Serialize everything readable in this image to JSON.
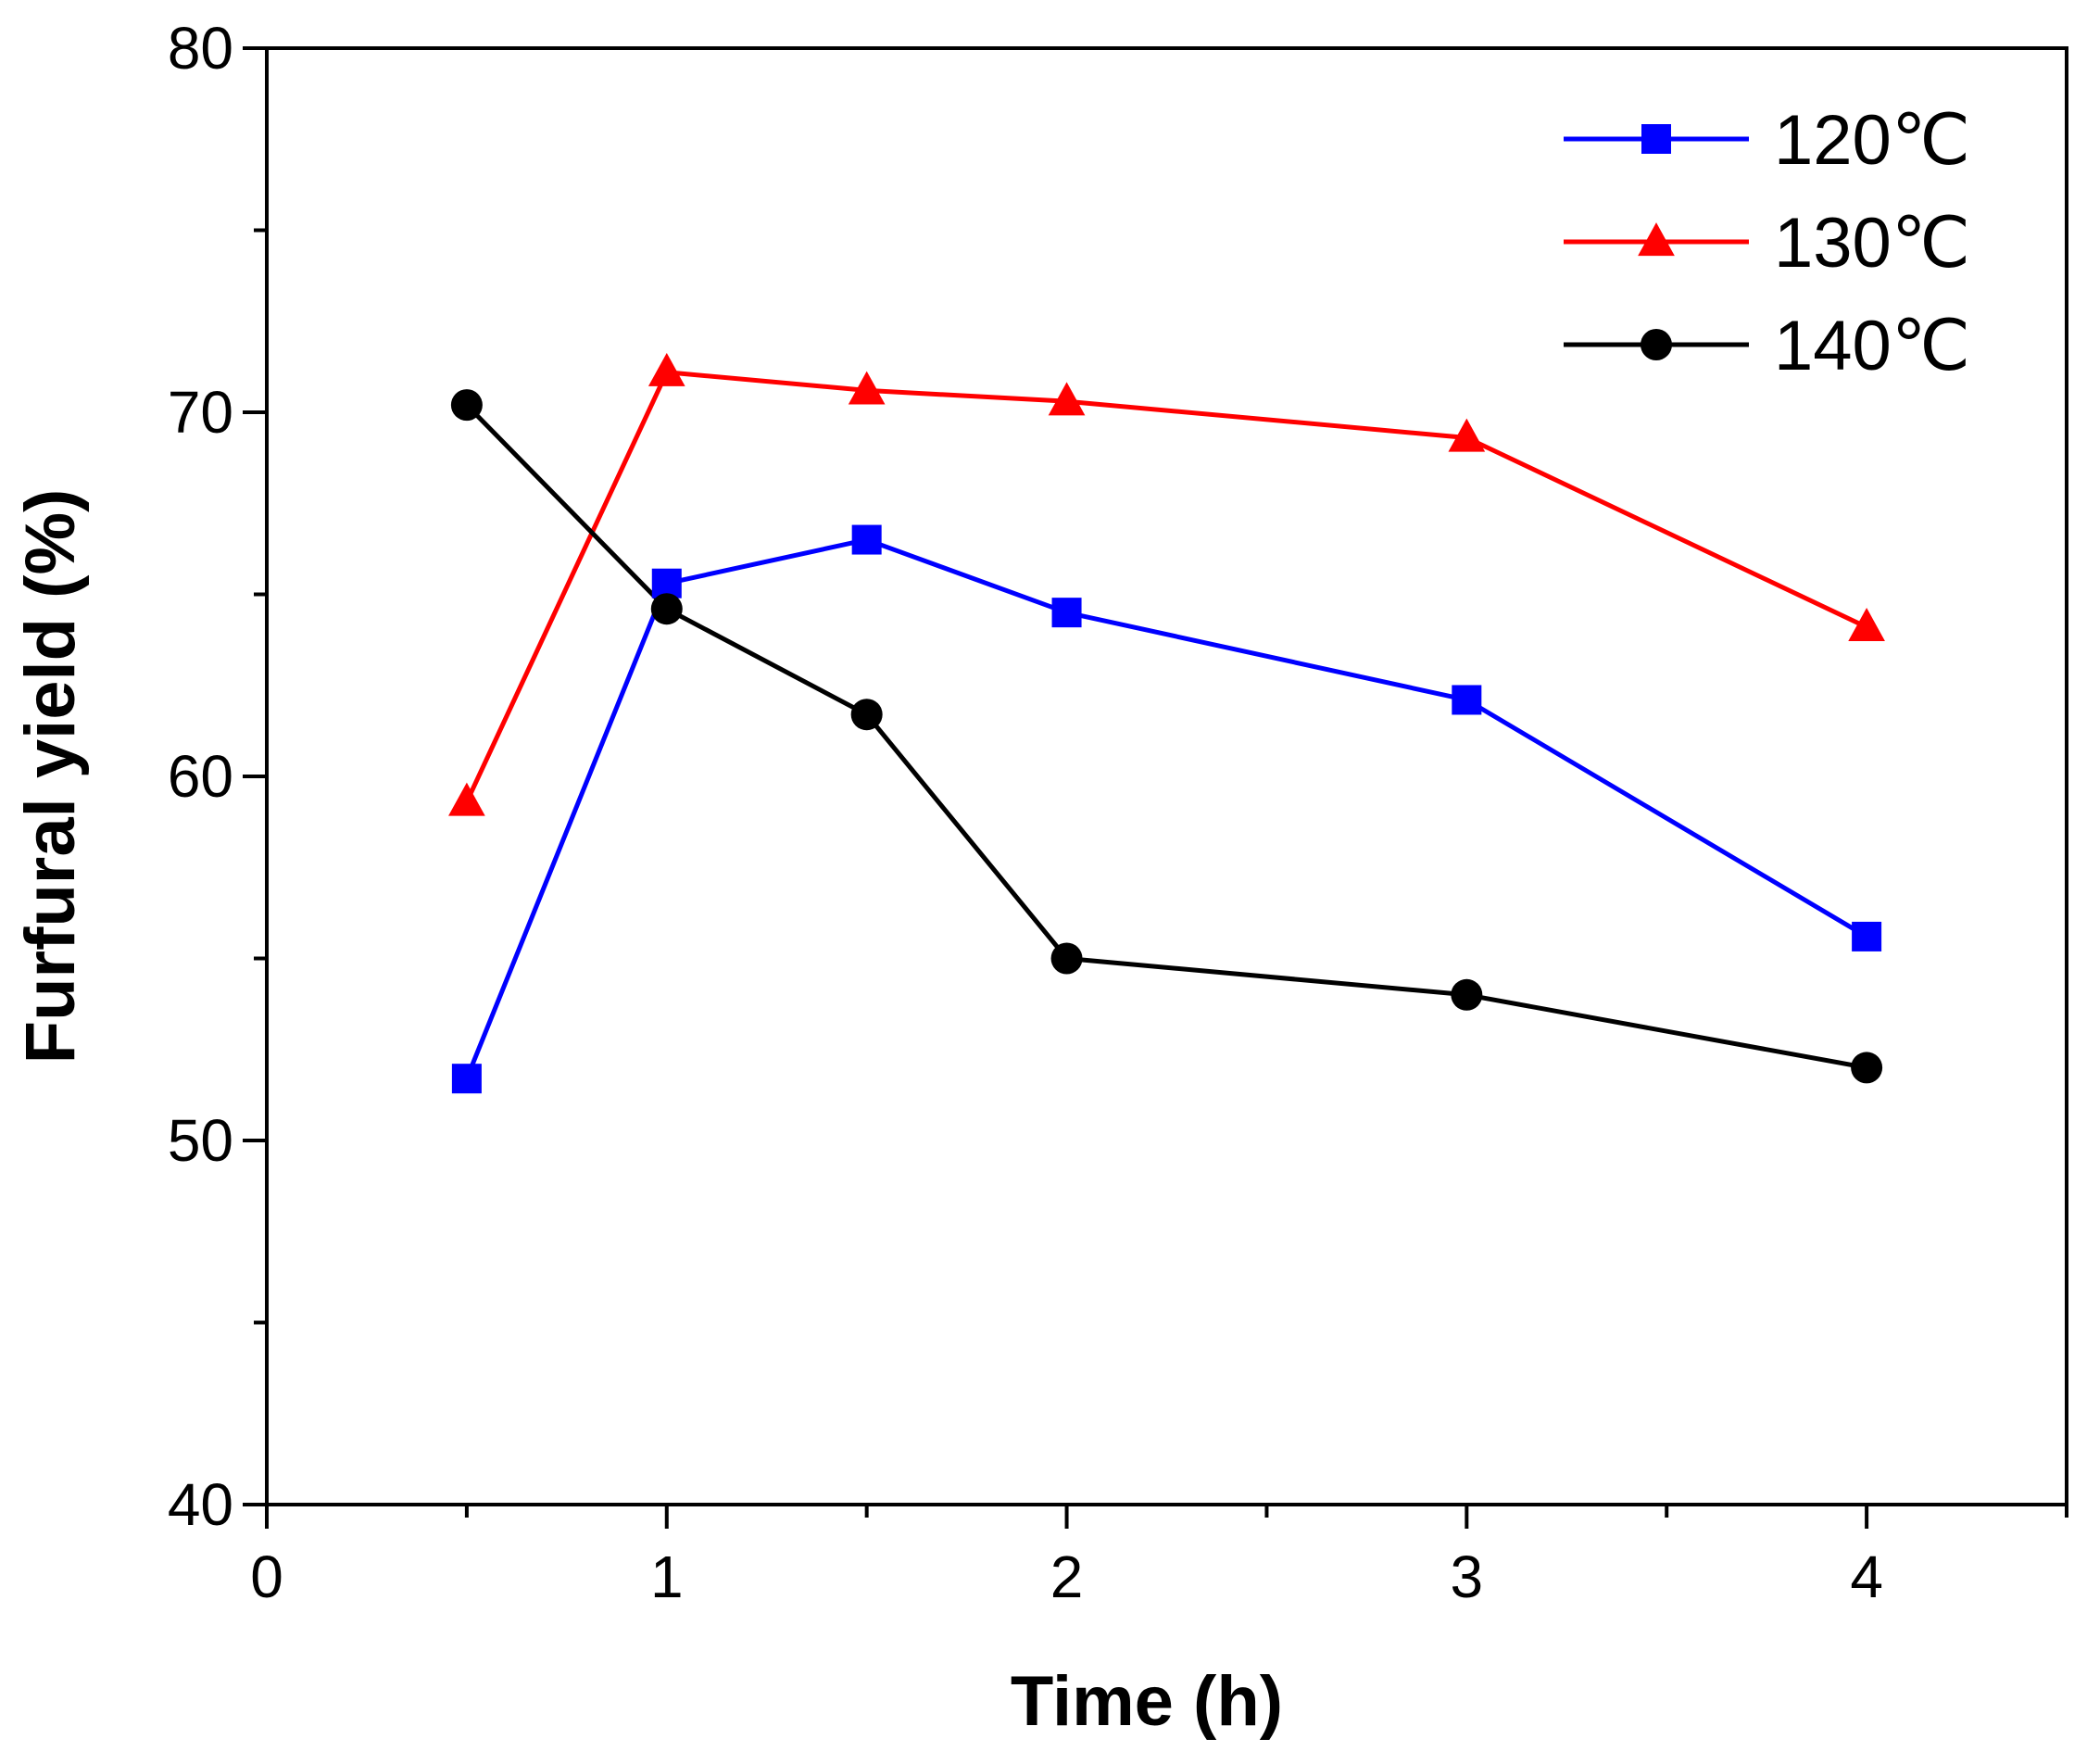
{
  "chart_data": {
    "type": "line",
    "title": "",
    "xlabel": "Time (h)",
    "ylabel": "Furfural yield (%)",
    "xlim": [
      0,
      4.5
    ],
    "ylim": [
      40,
      80
    ],
    "xticks": [
      0,
      1,
      2,
      3,
      4
    ],
    "yticks": [
      40,
      50,
      60,
      70,
      80
    ],
    "x_minor_step": 0.5,
    "y_minor_step": 5,
    "grid": false,
    "legend_position": "top-right",
    "series": [
      {
        "name": "120℃",
        "color": "#0000ff",
        "marker": "square",
        "x": [
          0.5,
          1,
          1.5,
          2,
          3,
          4
        ],
        "values": [
          51.7,
          65.3,
          66.5,
          64.5,
          62.1,
          55.6
        ]
      },
      {
        "name": "130℃",
        "color": "#ff0000",
        "marker": "triangle",
        "x": [
          0.5,
          1,
          1.5,
          2,
          3,
          4
        ],
        "values": [
          59.3,
          71.1,
          70.6,
          70.3,
          69.3,
          64.1
        ]
      },
      {
        "name": "140℃",
        "color": "#000000",
        "marker": "circle",
        "x": [
          0.5,
          1,
          1.5,
          2,
          3,
          4
        ],
        "values": [
          70.2,
          64.6,
          61.7,
          55.0,
          54.0,
          52.0
        ]
      }
    ]
  }
}
